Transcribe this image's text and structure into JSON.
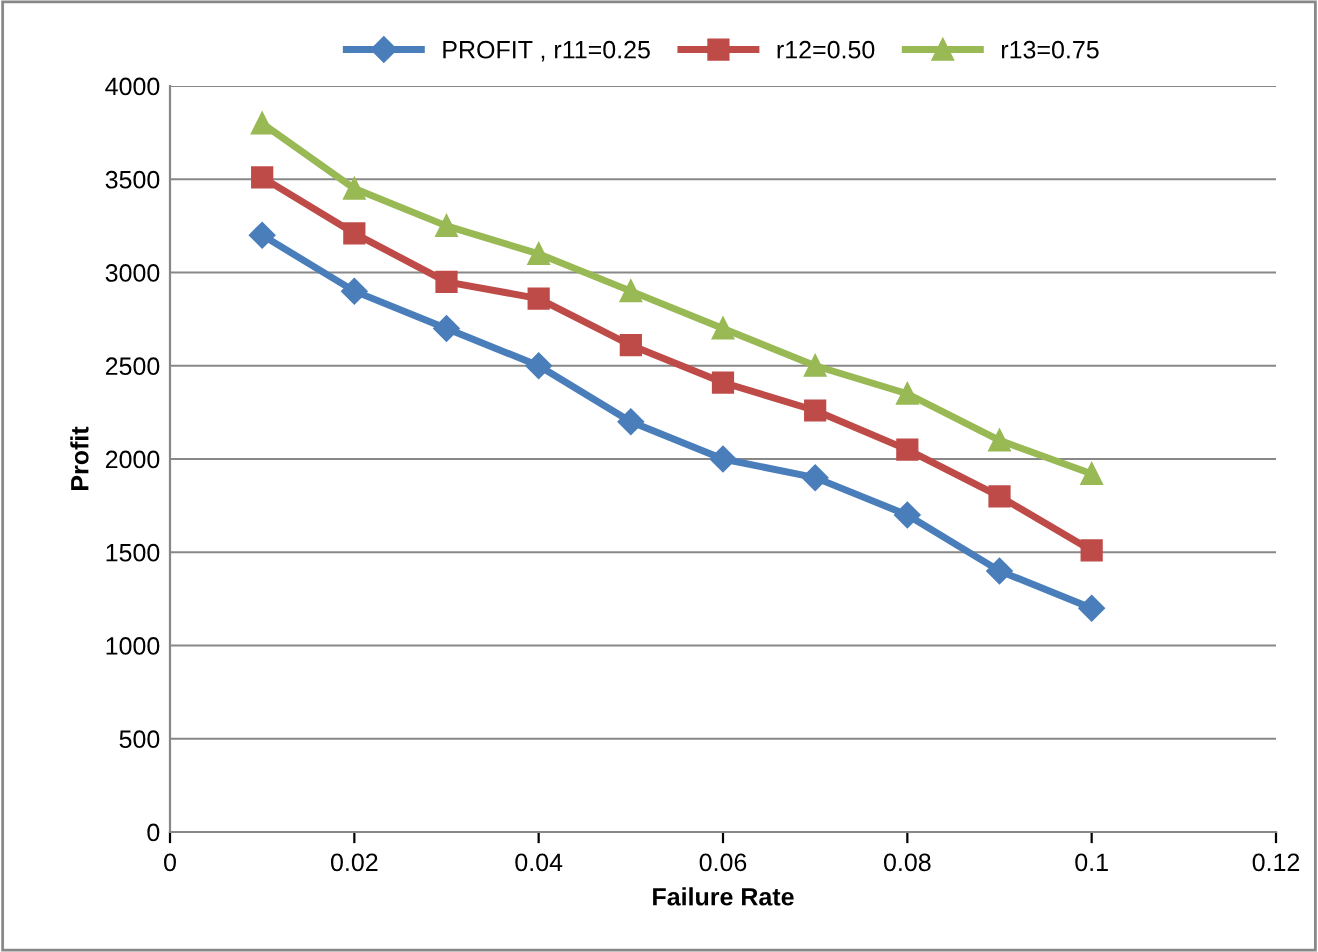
{
  "chart_data": {
    "type": "line",
    "xlabel": "Failure Rate",
    "ylabel": "Profit",
    "x": [
      0.01,
      0.02,
      0.03,
      0.04,
      0.05,
      0.06,
      0.07,
      0.08,
      0.09,
      0.1
    ],
    "series": [
      {
        "name": "PROFIT , r11=0.25",
        "color": "#4a7ebb",
        "marker": "diamond",
        "values": [
          3200,
          2900,
          2700,
          2500,
          2200,
          2000,
          1900,
          1700,
          1400,
          1200
        ]
      },
      {
        "name": "r12=0.50",
        "color": "#be4b48",
        "marker": "square",
        "values": [
          3510,
          3210,
          2950,
          2860,
          2610,
          2410,
          2260,
          2050,
          1800,
          1510
        ]
      },
      {
        "name": "r13=0.75",
        "color": "#98b954",
        "marker": "triangle",
        "values": [
          3800,
          3450,
          3250,
          3100,
          2900,
          2700,
          2500,
          2350,
          2100,
          1920
        ]
      }
    ],
    "xlim": [
      0,
      0.12
    ],
    "xticks": [
      0,
      {
        "value": 0.02,
        "label": "0.02"
      },
      {
        "value": 0.04,
        "label": "0.04"
      },
      {
        "value": 0.06,
        "label": "0.06"
      },
      {
        "value": 0.08,
        "label": "0.08"
      },
      {
        "value": 0.1,
        "label": "0.1"
      },
      {
        "value": 0.12,
        "label": "0.12"
      }
    ],
    "ylim": [
      0,
      4000
    ],
    "yticks": [
      0,
      500,
      1000,
      1500,
      2000,
      2500,
      3000,
      3500,
      4000
    ],
    "grid": "y",
    "legend": "top",
    "line_style": "solid"
  }
}
